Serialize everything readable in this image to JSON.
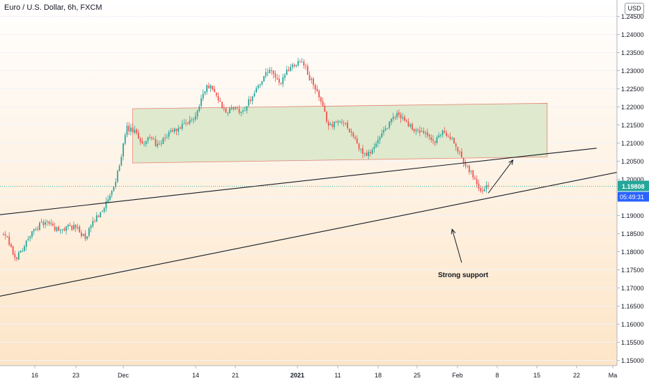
{
  "symbol_title": "Euro / U.S. Dollar, 6h, FXCM",
  "currency_button": "USD",
  "colors": {
    "up": "#26a69a",
    "down": "#ef5350",
    "zone_fill": "#d9e6c8",
    "zone_stroke": "#e5806f",
    "trendline": "#131722",
    "last_price_bg": "#2962ff",
    "bg_top": "#ffffff",
    "bg_bottom": "#fde5c7"
  },
  "price_axis": {
    "ticks": [
      "1.24500",
      "1.24000",
      "1.23500",
      "1.23000",
      "1.22500",
      "1.22000",
      "1.21500",
      "1.21000",
      "1.20500",
      "1.20000",
      "1.19500",
      "1.19000",
      "1.18500",
      "1.18000",
      "1.17500",
      "1.17000",
      "1.16500",
      "1.16000",
      "1.15500",
      "1.15000"
    ],
    "last_price": "1.19808",
    "countdown": "05:49:31"
  },
  "time_axis": {
    "ticks": [
      {
        "label": "16",
        "bold": false
      },
      {
        "label": "23",
        "bold": false
      },
      {
        "label": "Dec",
        "bold": false
      },
      {
        "label": "14",
        "bold": false
      },
      {
        "label": "21",
        "bold": false
      },
      {
        "label": "2021",
        "bold": true
      },
      {
        "label": "11",
        "bold": false
      },
      {
        "label": "18",
        "bold": false
      },
      {
        "label": "25",
        "bold": false
      },
      {
        "label": "Feb",
        "bold": false
      },
      {
        "label": "8",
        "bold": false
      },
      {
        "label": "15",
        "bold": false
      },
      {
        "label": "22",
        "bold": false
      },
      {
        "label": "Ma",
        "bold": false
      }
    ]
  },
  "annotation": {
    "text": "Strong support"
  },
  "chart_data": {
    "type": "candlestick",
    "symbol": "EURUSD",
    "timeframe": "6h",
    "ylim": [
      1.148,
      1.247
    ],
    "price_path": [
      [
        0,
        1.185
      ],
      [
        3,
        1.1835
      ],
      [
        7,
        1.178
      ],
      [
        10,
        1.18
      ],
      [
        15,
        1.1845
      ],
      [
        20,
        1.1875
      ],
      [
        25,
        1.188
      ],
      [
        30,
        1.1855
      ],
      [
        35,
        1.187
      ],
      [
        40,
        1.1865
      ],
      [
        44,
        1.1835
      ],
      [
        48,
        1.188
      ],
      [
        52,
        1.191
      ],
      [
        56,
        1.194
      ],
      [
        60,
        1.199
      ],
      [
        63,
        1.207
      ],
      [
        66,
        1.214
      ],
      [
        70,
        1.213
      ],
      [
        74,
        1.21
      ],
      [
        78,
        1.2115
      ],
      [
        83,
        1.209
      ],
      [
        88,
        1.213
      ],
      [
        93,
        1.214
      ],
      [
        97,
        1.215
      ],
      [
        102,
        1.2175
      ],
      [
        106,
        1.224
      ],
      [
        110,
        1.2265
      ],
      [
        114,
        1.222
      ],
      [
        118,
        1.218
      ],
      [
        122,
        1.22
      ],
      [
        126,
        1.218
      ],
      [
        130,
        1.2215
      ],
      [
        134,
        1.225
      ],
      [
        138,
        1.2285
      ],
      [
        142,
        1.23
      ],
      [
        146,
        1.226
      ],
      [
        150,
        1.23
      ],
      [
        154,
        1.232
      ],
      [
        158,
        1.233
      ],
      [
        162,
        1.228
      ],
      [
        166,
        1.224
      ],
      [
        169,
        1.2195
      ],
      [
        172,
        1.215
      ],
      [
        176,
        1.2155
      ],
      [
        180,
        1.216
      ],
      [
        184,
        1.213
      ],
      [
        188,
        1.2085
      ],
      [
        192,
        1.2065
      ],
      [
        196,
        1.209
      ],
      [
        200,
        1.212
      ],
      [
        204,
        1.2155
      ],
      [
        208,
        1.218
      ],
      [
        212,
        1.2165
      ],
      [
        216,
        1.214
      ],
      [
        220,
        1.213
      ],
      [
        224,
        1.212
      ],
      [
        228,
        1.21
      ],
      [
        232,
        1.2135
      ],
      [
        236,
        1.2115
      ],
      [
        240,
        1.208
      ],
      [
        244,
        1.2045
      ],
      [
        248,
        1.201
      ],
      [
        251,
        1.198
      ],
      [
        253,
        1.1968
      ],
      [
        255,
        1.1981
      ]
    ],
    "demand_zone": {
      "start_bar": 68,
      "end_bar": 286,
      "top_start": 1.2195,
      "top_end": 1.221,
      "bottom_start": 1.2045,
      "bottom_end": 1.2062
    },
    "trendlines": [
      {
        "from": [
          -23,
          1.189
        ],
        "to": [
          312,
          1.2086
        ]
      },
      {
        "from": [
          -23,
          1.1655
        ],
        "to": [
          330,
          1.2027
        ]
      }
    ],
    "arrows": [
      {
        "from": [
          255,
          1.1962
        ],
        "to": [
          268,
          1.2053
        ]
      },
      {
        "from": [
          241,
          1.177
        ],
        "to": [
          236,
          1.1862
        ]
      }
    ],
    "last_price_line": 1.19808
  }
}
